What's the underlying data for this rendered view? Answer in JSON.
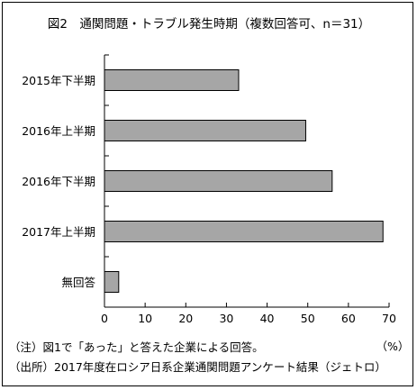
{
  "chart_data": {
    "type": "bar",
    "orientation": "horizontal",
    "title": "図2　通関問題・トラブル発生時期（複数回答可、n＝31）",
    "categories": [
      "2015年下半期",
      "2016年上半期",
      "2016年下半期",
      "2017年上半期",
      "無回答"
    ],
    "values": [
      33,
      49.5,
      56,
      68.5,
      3.5
    ],
    "xlim": [
      0,
      70
    ],
    "xticks": [
      "0",
      "10",
      "20",
      "30",
      "40",
      "50",
      "60",
      "70"
    ],
    "unit_label": "（%）",
    "grid": false,
    "bar_color": "#a6a6a6"
  },
  "notes": [
    "（注）図1で「あった」と答えた企業による回答。",
    "（出所）2017年度在ロシア日系企業通関問題アンケート結果（ジェトロ）"
  ]
}
